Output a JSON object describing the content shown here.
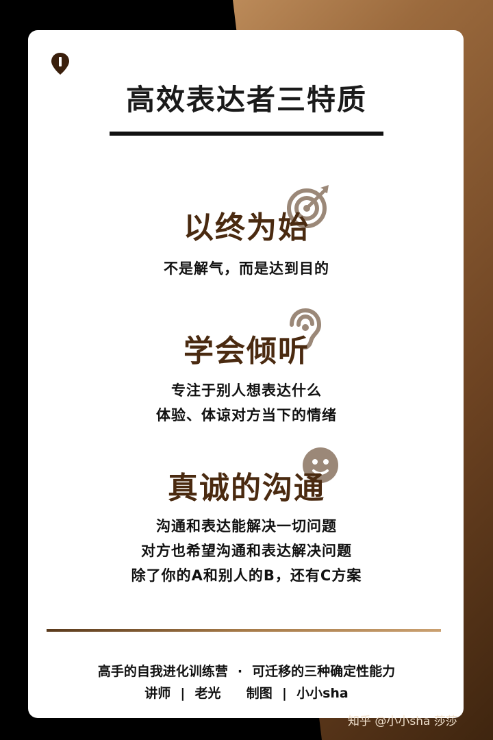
{
  "title": "高效表达者三特质",
  "sections": [
    {
      "heading": "以终为始",
      "icon": "target-icon",
      "lines": [
        "不是解气，而是达到目的"
      ]
    },
    {
      "heading": "学会倾听",
      "icon": "ear-icon",
      "lines": [
        "专注于别人想表达什么",
        "体验、体谅对方当下的情绪"
      ]
    },
    {
      "heading": "真诚的沟通",
      "icon": "smiley-icon",
      "lines": [
        "沟通和表达能解决一切问题",
        "对方也希望沟通和表达解决问题",
        "除了你的A和别人的B，还有C方案"
      ]
    }
  ],
  "footer": {
    "program": "高手的自我进化训练营",
    "dot": "·",
    "course": "可迁移的三种确定性能力",
    "lecturer_label": "讲师",
    "lecturer": "老光",
    "designer_label": "制图",
    "designer": "小小sha",
    "separator": "|"
  },
  "watermark": "知乎 @小小sha 莎莎",
  "colors": {
    "heading": "#4a2a10",
    "icon": "#9b8878",
    "bronze": "#9b6a3d"
  }
}
